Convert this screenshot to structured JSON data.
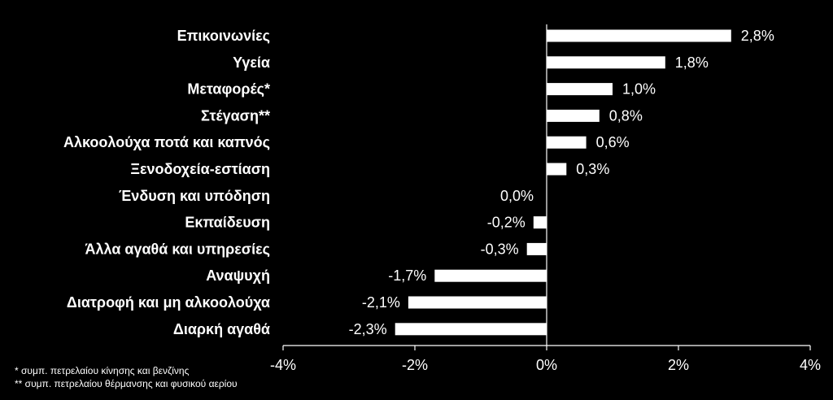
{
  "chart_data": {
    "type": "bar",
    "orientation": "horizontal",
    "categories": [
      "Επικοινωνίες",
      "Υγεία",
      "Μεταφορές*",
      "Στέγαση**",
      "Αλκοολούχα ποτά και καπνός",
      "Ξενοδοχεία-εστίαση",
      "Ένδυση και υπόδηση",
      "Εκπαίδευση",
      "Άλλα αγαθά και υπηρεσίες",
      "Αναψυχή",
      "Διατροφή και μη αλκοολούχα",
      "Διαρκή αγαθά"
    ],
    "values": [
      2.8,
      1.8,
      1.0,
      0.8,
      0.6,
      0.3,
      0.0,
      -0.2,
      -0.3,
      -1.7,
      -2.1,
      -2.3
    ],
    "value_labels": [
      "2,8%",
      "1,8%",
      "1,0%",
      "0,8%",
      "0,6%",
      "0,3%",
      "0,0%",
      "-0,2%",
      "-0,3%",
      "-1,7%",
      "-2,1%",
      "-2,3%"
    ],
    "xlim": [
      -4,
      4
    ],
    "xticks": [
      -4,
      -2,
      0,
      2,
      4
    ],
    "xtick_labels": [
      "-4%",
      "-2%",
      "0%",
      "2%",
      "4%"
    ],
    "grid": false,
    "bar_color": "#ffffff",
    "background": "#000000",
    "title": "",
    "xlabel": "",
    "ylabel": ""
  },
  "footnotes": [
    "* συμπ. πετρελαίου κίνησης και βενζίνης",
    "** συμπ. πετρελαίου θέρμανσης και φυσικού αερίου"
  ]
}
